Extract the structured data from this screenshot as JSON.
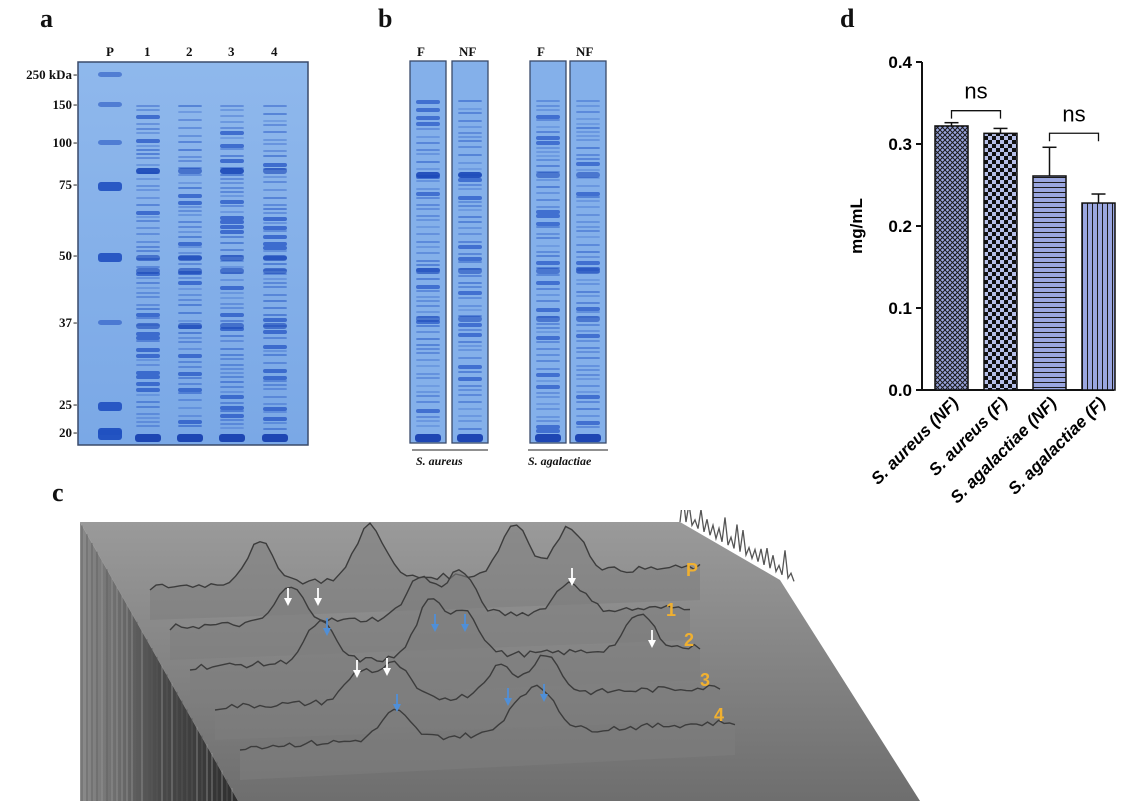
{
  "panels": {
    "a": "a",
    "b": "b",
    "c": "c",
    "d": "d"
  },
  "gel_a": {
    "lanes": [
      "P",
      "1",
      "2",
      "3",
      "4"
    ],
    "markers": [
      {
        "label": "250 kDa",
        "kda": 250
      },
      {
        "label": "150",
        "kda": 150
      },
      {
        "label": "100",
        "kda": 100
      },
      {
        "label": "75",
        "kda": 75
      },
      {
        "label": "50",
        "kda": 50
      },
      {
        "label": "37",
        "kda": 37
      },
      {
        "label": "25",
        "kda": 25
      },
      {
        "label": "20",
        "kda": 20
      }
    ]
  },
  "gel_b": {
    "groups": [
      {
        "species": "S. aureus",
        "lanes": [
          "F",
          "NF"
        ]
      },
      {
        "species": "S. agalactiae",
        "lanes": [
          "F",
          "NF"
        ]
      }
    ]
  },
  "surface_c": {
    "lane_labels": [
      "P",
      "1",
      "2",
      "3",
      "4"
    ],
    "label_color": "#f0b030",
    "white_arrow_color": "#ffffff",
    "blue_arrow_color": "#4f8fd8"
  },
  "chart_data": {
    "type": "bar",
    "categories": [
      "S. aureus  (NF)",
      "S. aureus (F)",
      "S. agalactiae (NF)",
      "S. agalactiae (F)"
    ],
    "values": [
      0.322,
      0.313,
      0.261,
      0.228
    ],
    "errors": [
      0.004,
      0.006,
      0.035,
      0.011
    ],
    "ylabel": "mg/mL",
    "ylim": [
      0.0,
      0.4
    ],
    "yticks": [
      "0.0",
      "0.1",
      "0.2",
      "0.3",
      "0.4"
    ],
    "bar_color": "#9aa6e0",
    "patterns": [
      "crosshatch",
      "checker",
      "horizontal",
      "vertical"
    ],
    "significance": [
      {
        "between": [
          0,
          1
        ],
        "label": "ns"
      },
      {
        "between": [
          2,
          3
        ],
        "label": "ns"
      }
    ]
  }
}
